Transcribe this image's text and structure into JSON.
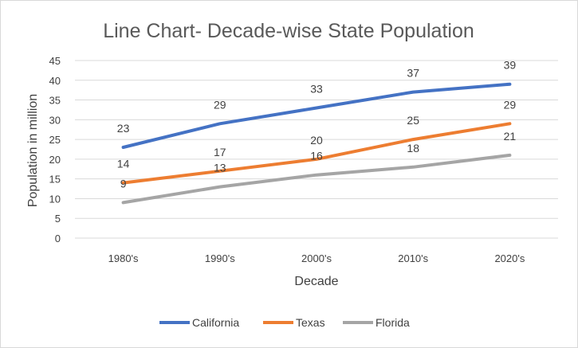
{
  "chart_data": {
    "type": "line",
    "title": "Line Chart- Decade-wise State Population",
    "xlabel": "Decade",
    "ylabel": "Population in million",
    "categories": [
      "1980's",
      "1990's",
      "2000's",
      "2010's",
      "2020's"
    ],
    "ylim": [
      0,
      45
    ],
    "yticks": [
      0,
      5,
      10,
      15,
      20,
      25,
      30,
      35,
      40,
      45
    ],
    "grid": true,
    "legend_position": "bottom",
    "series": [
      {
        "name": "California",
        "color": "#4472c4",
        "values": [
          23,
          29,
          33,
          37,
          39
        ]
      },
      {
        "name": "Texas",
        "color": "#ed7d31",
        "values": [
          14,
          17,
          20,
          25,
          29
        ]
      },
      {
        "name": "Florida",
        "color": "#a5a5a5",
        "values": [
          9,
          13,
          16,
          18,
          21
        ]
      }
    ]
  }
}
